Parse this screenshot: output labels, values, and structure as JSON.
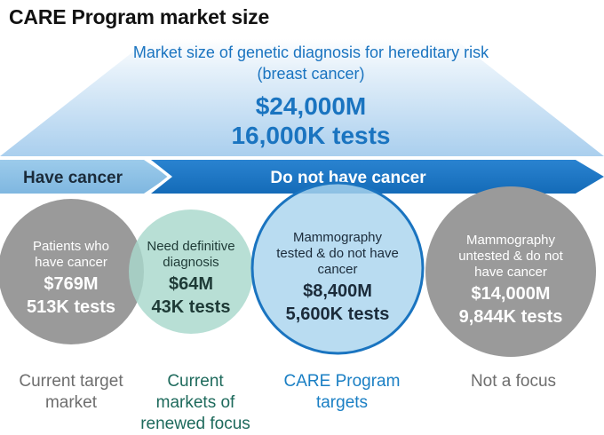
{
  "title": "CARE Program market size",
  "market": {
    "line1": "Market size of genetic diagnosis for hereditary risk",
    "line2": "(breast cancer)",
    "value": "$24,000M",
    "tests": "16,000K tests"
  },
  "banner": {
    "left": "Have cancer",
    "right": "Do not have cancer"
  },
  "segments": [
    {
      "label": [
        "Patients who",
        "have cancer"
      ],
      "value": "$769M",
      "tests": "513K tests",
      "caption": [
        "Current target",
        "market"
      ],
      "color": "#9a9a9a",
      "caption_color": "#6e6e6e"
    },
    {
      "label": [
        "Need definitive",
        "diagnosis"
      ],
      "value": "$64M",
      "tests": "43K tests",
      "caption": [
        "Current",
        "markets of",
        "renewed focus"
      ],
      "color": "#a8d8cc",
      "caption_color": "#1e6a5c"
    },
    {
      "label": [
        "Mammography",
        "tested & do not have",
        "cancer"
      ],
      "value": "$8,400M",
      "tests": "5,600K tests",
      "caption": [
        "CARE Program",
        "targets"
      ],
      "color": "#a9d4ee",
      "caption_color": "#1a7fc4"
    },
    {
      "label": [
        "Mammography",
        "untested & do not",
        "have cancer"
      ],
      "value": "$14,000M",
      "tests": "9,844K tests",
      "caption": [
        "Not a focus"
      ],
      "color": "#9a9a9a",
      "caption_color": "#6e6e6e"
    }
  ],
  "colors": {
    "accent_blue": "#1a74c0",
    "light_blue": "#8fc3e6",
    "banner_blue": "#1e77c8",
    "gray": "#9a9a9a",
    "teal": "#a8d8cc"
  }
}
